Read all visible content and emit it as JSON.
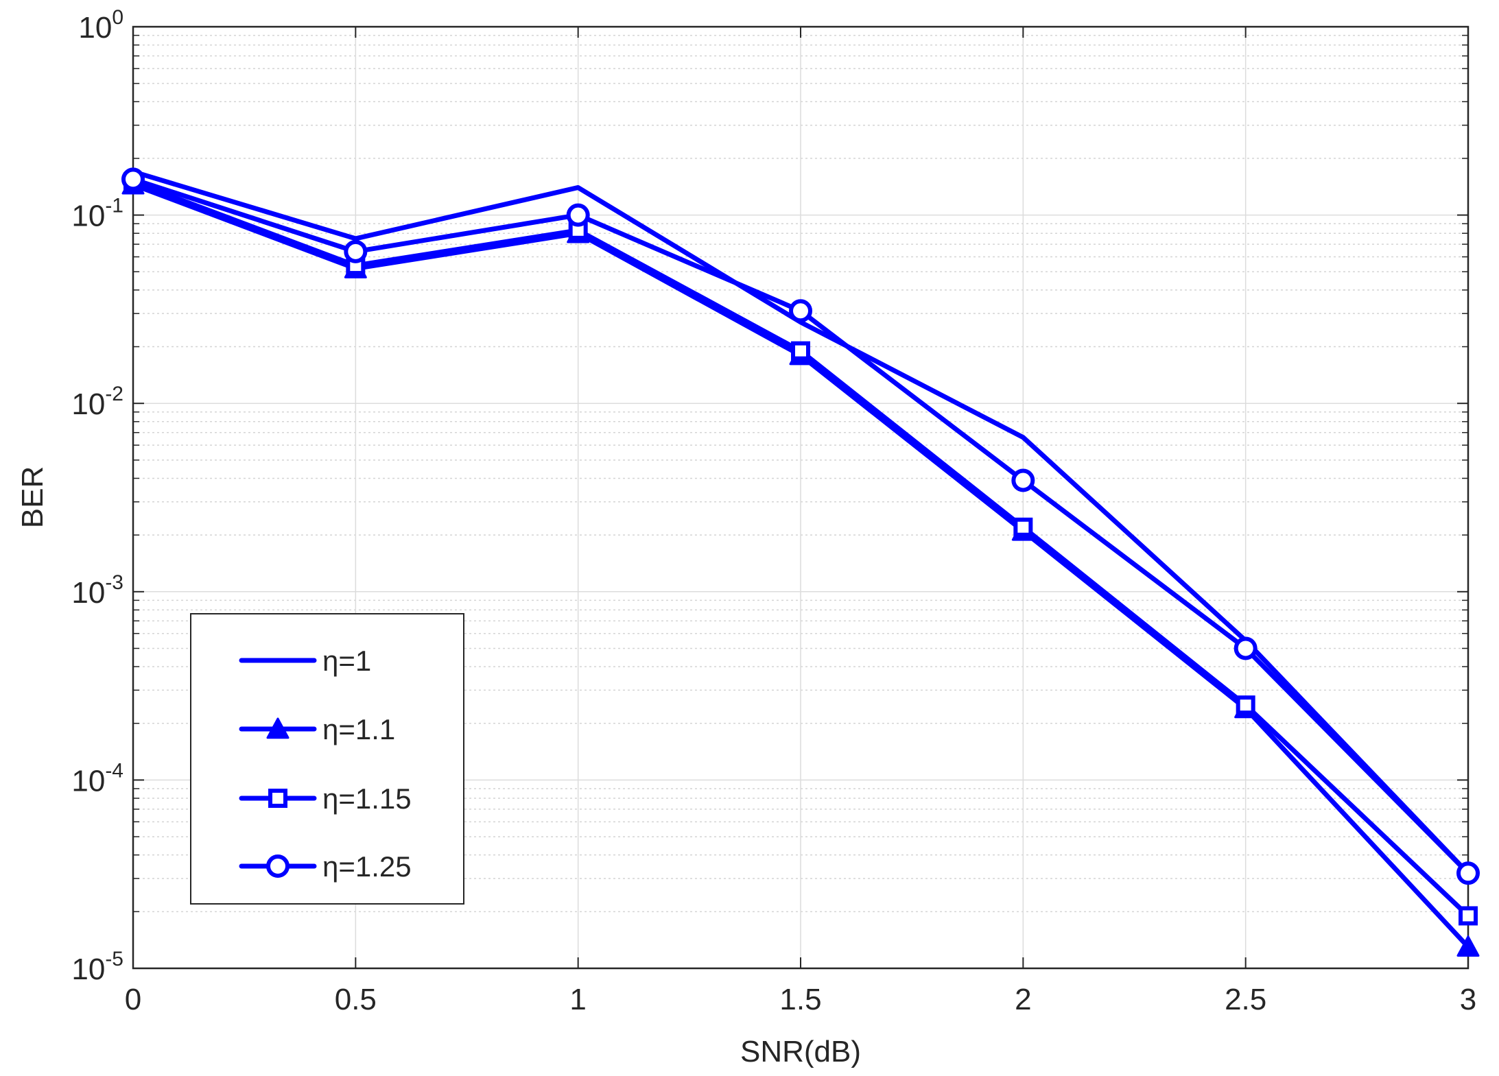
{
  "chart_data": {
    "type": "line",
    "title": "",
    "xlabel": "SNR(dB)",
    "ylabel": "BER",
    "x_scale": "linear",
    "y_scale": "log",
    "xlim": [
      0,
      3
    ],
    "ylim": [
      1e-05,
      1
    ],
    "grid": true,
    "minor_grid": true,
    "x_ticks": [
      0,
      0.5,
      1,
      1.5,
      2,
      2.5,
      3
    ],
    "x_tick_labels": [
      "0",
      "0.5",
      "1",
      "1.5",
      "2",
      "2.5",
      "3"
    ],
    "y_ticks": [
      1,
      0.1,
      0.01,
      0.001,
      0.0001,
      1e-05
    ],
    "y_tick_labels": [
      {
        "base": "10",
        "exp": "0"
      },
      {
        "base": "10",
        "exp": "-1"
      },
      {
        "base": "10",
        "exp": "-2"
      },
      {
        "base": "10",
        "exp": "-3"
      },
      {
        "base": "10",
        "exp": "-4"
      },
      {
        "base": "10",
        "exp": "-5"
      }
    ],
    "legend_position": "bottom-left",
    "x": [
      0,
      0.5,
      1,
      1.5,
      2,
      2.5,
      3
    ],
    "series": [
      {
        "name": "η=1",
        "marker": "none",
        "color": "#0000ff",
        "values": [
          0.17,
          0.075,
          0.14,
          0.027,
          0.0066,
          0.00055,
          3.2e-05
        ]
      },
      {
        "name": "η=1.1",
        "marker": "triangle",
        "color": "#0000ff",
        "values": [
          0.145,
          0.052,
          0.08,
          0.018,
          0.0021,
          0.00024,
          1.3e-05
        ]
      },
      {
        "name": "η=1.15",
        "marker": "square",
        "color": "#0000ff",
        "values": [
          0.15,
          0.054,
          0.083,
          0.019,
          0.0022,
          0.00025,
          1.9e-05
        ]
      },
      {
        "name": "η=1.25",
        "marker": "circle",
        "color": "#0000ff",
        "values": [
          0.155,
          0.064,
          0.1,
          0.031,
          0.0039,
          0.0005,
          3.2e-05
        ]
      }
    ]
  }
}
